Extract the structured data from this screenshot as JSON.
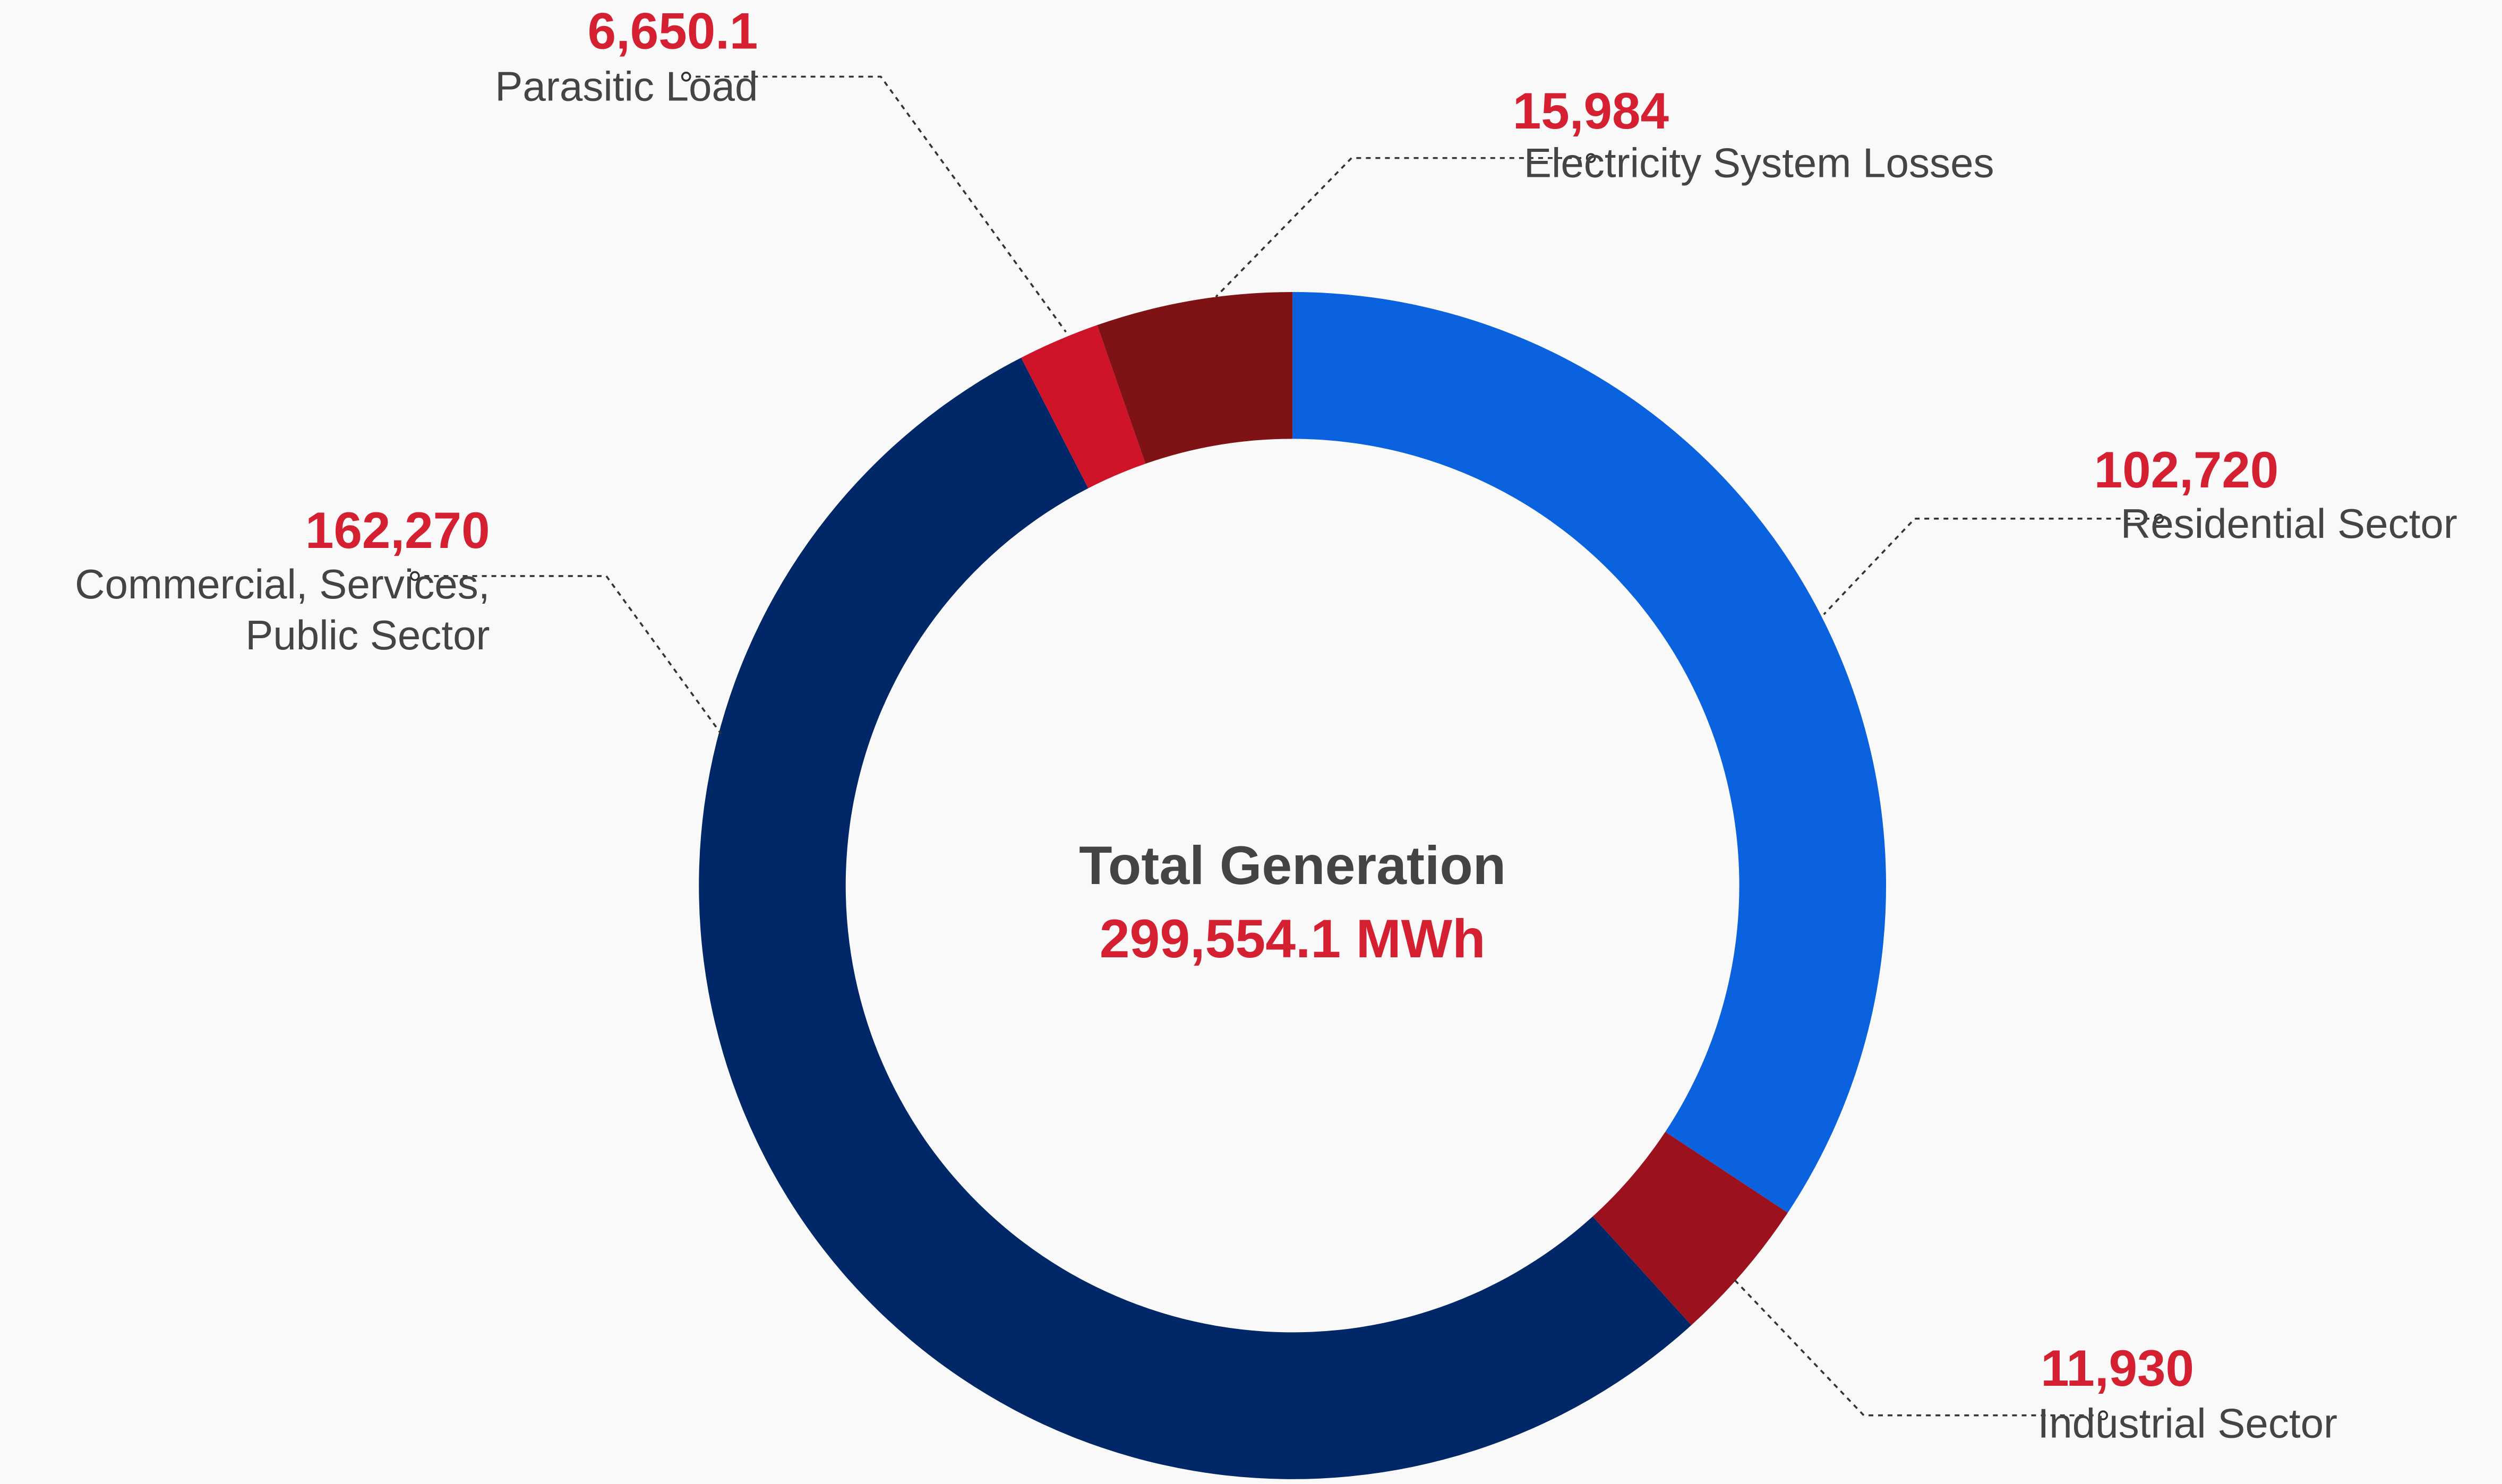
{
  "chart_data": {
    "type": "donut",
    "center_title": "Total Generation",
    "center_label": "299,554.1 MWh",
    "categories": [
      "Residential Sector",
      "Industrial Sector",
      "Commercial, Services, Public Sector",
      "Parasitic Load",
      "Electricity System Losses"
    ],
    "values": [
      102720,
      11930,
      162270,
      6650.1,
      15984
    ],
    "value_labels": [
      "102,720",
      "11,930",
      "162,270",
      "6,650.1",
      "15,984"
    ],
    "colors": [
      "#0b62df",
      "#9b111e",
      "#002868",
      "#cf1329",
      "#7f1214"
    ]
  }
}
